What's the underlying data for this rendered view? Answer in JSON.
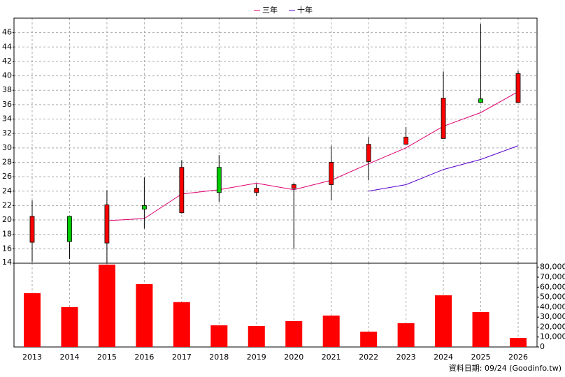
{
  "chart_data": {
    "type": "candlestick",
    "categories": [
      "2013",
      "2014",
      "2015",
      "2016",
      "2017",
      "2018",
      "2019",
      "2020",
      "2021",
      "2022",
      "2023",
      "2024",
      "2025",
      "2026"
    ],
    "open": [
      16.9,
      20.5,
      16.8,
      22.0,
      21.0,
      27.3,
      23.8,
      24.4,
      24.9,
      28.1,
      30.5,
      31.3,
      36.8,
      36.3
    ],
    "high": [
      22.7,
      20.5,
      24.1,
      25.9,
      28.3,
      29.0,
      25.0,
      25.1,
      30.3,
      31.5,
      32.9,
      40.6,
      47.2,
      40.7
    ],
    "low": [
      14.2,
      14.6,
      14.0,
      18.8,
      20.9,
      22.5,
      23.3,
      16.0,
      22.7,
      25.5,
      30.5,
      31.3,
      36.3,
      36.3
    ],
    "close": [
      20.5,
      17.0,
      22.1,
      21.5,
      27.3,
      23.8,
      24.4,
      24.9,
      28.0,
      30.5,
      31.5,
      36.9,
      36.3,
      40.3
    ],
    "up_color": "#ff0000",
    "down_color": "#00cc00",
    "series": [
      {
        "name": "三年",
        "color": "#e0006f",
        "values": [
          null,
          null,
          19.9,
          20.2,
          23.6,
          24.2,
          25.1,
          24.2,
          25.5,
          27.8,
          30.0,
          33.0,
          34.9,
          37.8
        ]
      },
      {
        "name": "十年",
        "color": "#5a00d0",
        "values": [
          null,
          null,
          null,
          null,
          null,
          null,
          null,
          null,
          null,
          24.0,
          24.9,
          27.0,
          28.4,
          30.3
        ]
      }
    ],
    "ylim": [
      14,
      48
    ],
    "yticks": [
      14,
      16,
      18,
      20,
      22,
      24,
      26,
      28,
      30,
      32,
      34,
      36,
      38,
      40,
      42,
      44,
      46
    ],
    "grid": true,
    "volume": {
      "color": "#ff0000",
      "values": [
        54000,
        40000,
        82600,
        63000,
        45000,
        21700,
        21000,
        25900,
        31500,
        15400,
        23800,
        51800,
        35000,
        9100
      ],
      "ylim": [
        0,
        84000
      ],
      "yticks": [
        0,
        {
          "value": 10000,
          "label": "10,000"
        },
        {
          "value": 20000,
          "label": "20,000"
        },
        {
          "value": 30000,
          "label": "30,000"
        },
        {
          "value": 40000,
          "label": "40,000"
        },
        {
          "value": 50000,
          "label": "50,000"
        },
        {
          "value": 60000,
          "label": "60,000"
        },
        {
          "value": 70000,
          "label": "70,000"
        },
        {
          "value": 80000,
          "label": "80,000"
        }
      ]
    },
    "footnote": "資料日期: 09/24 (Goodinfo.tw)"
  }
}
